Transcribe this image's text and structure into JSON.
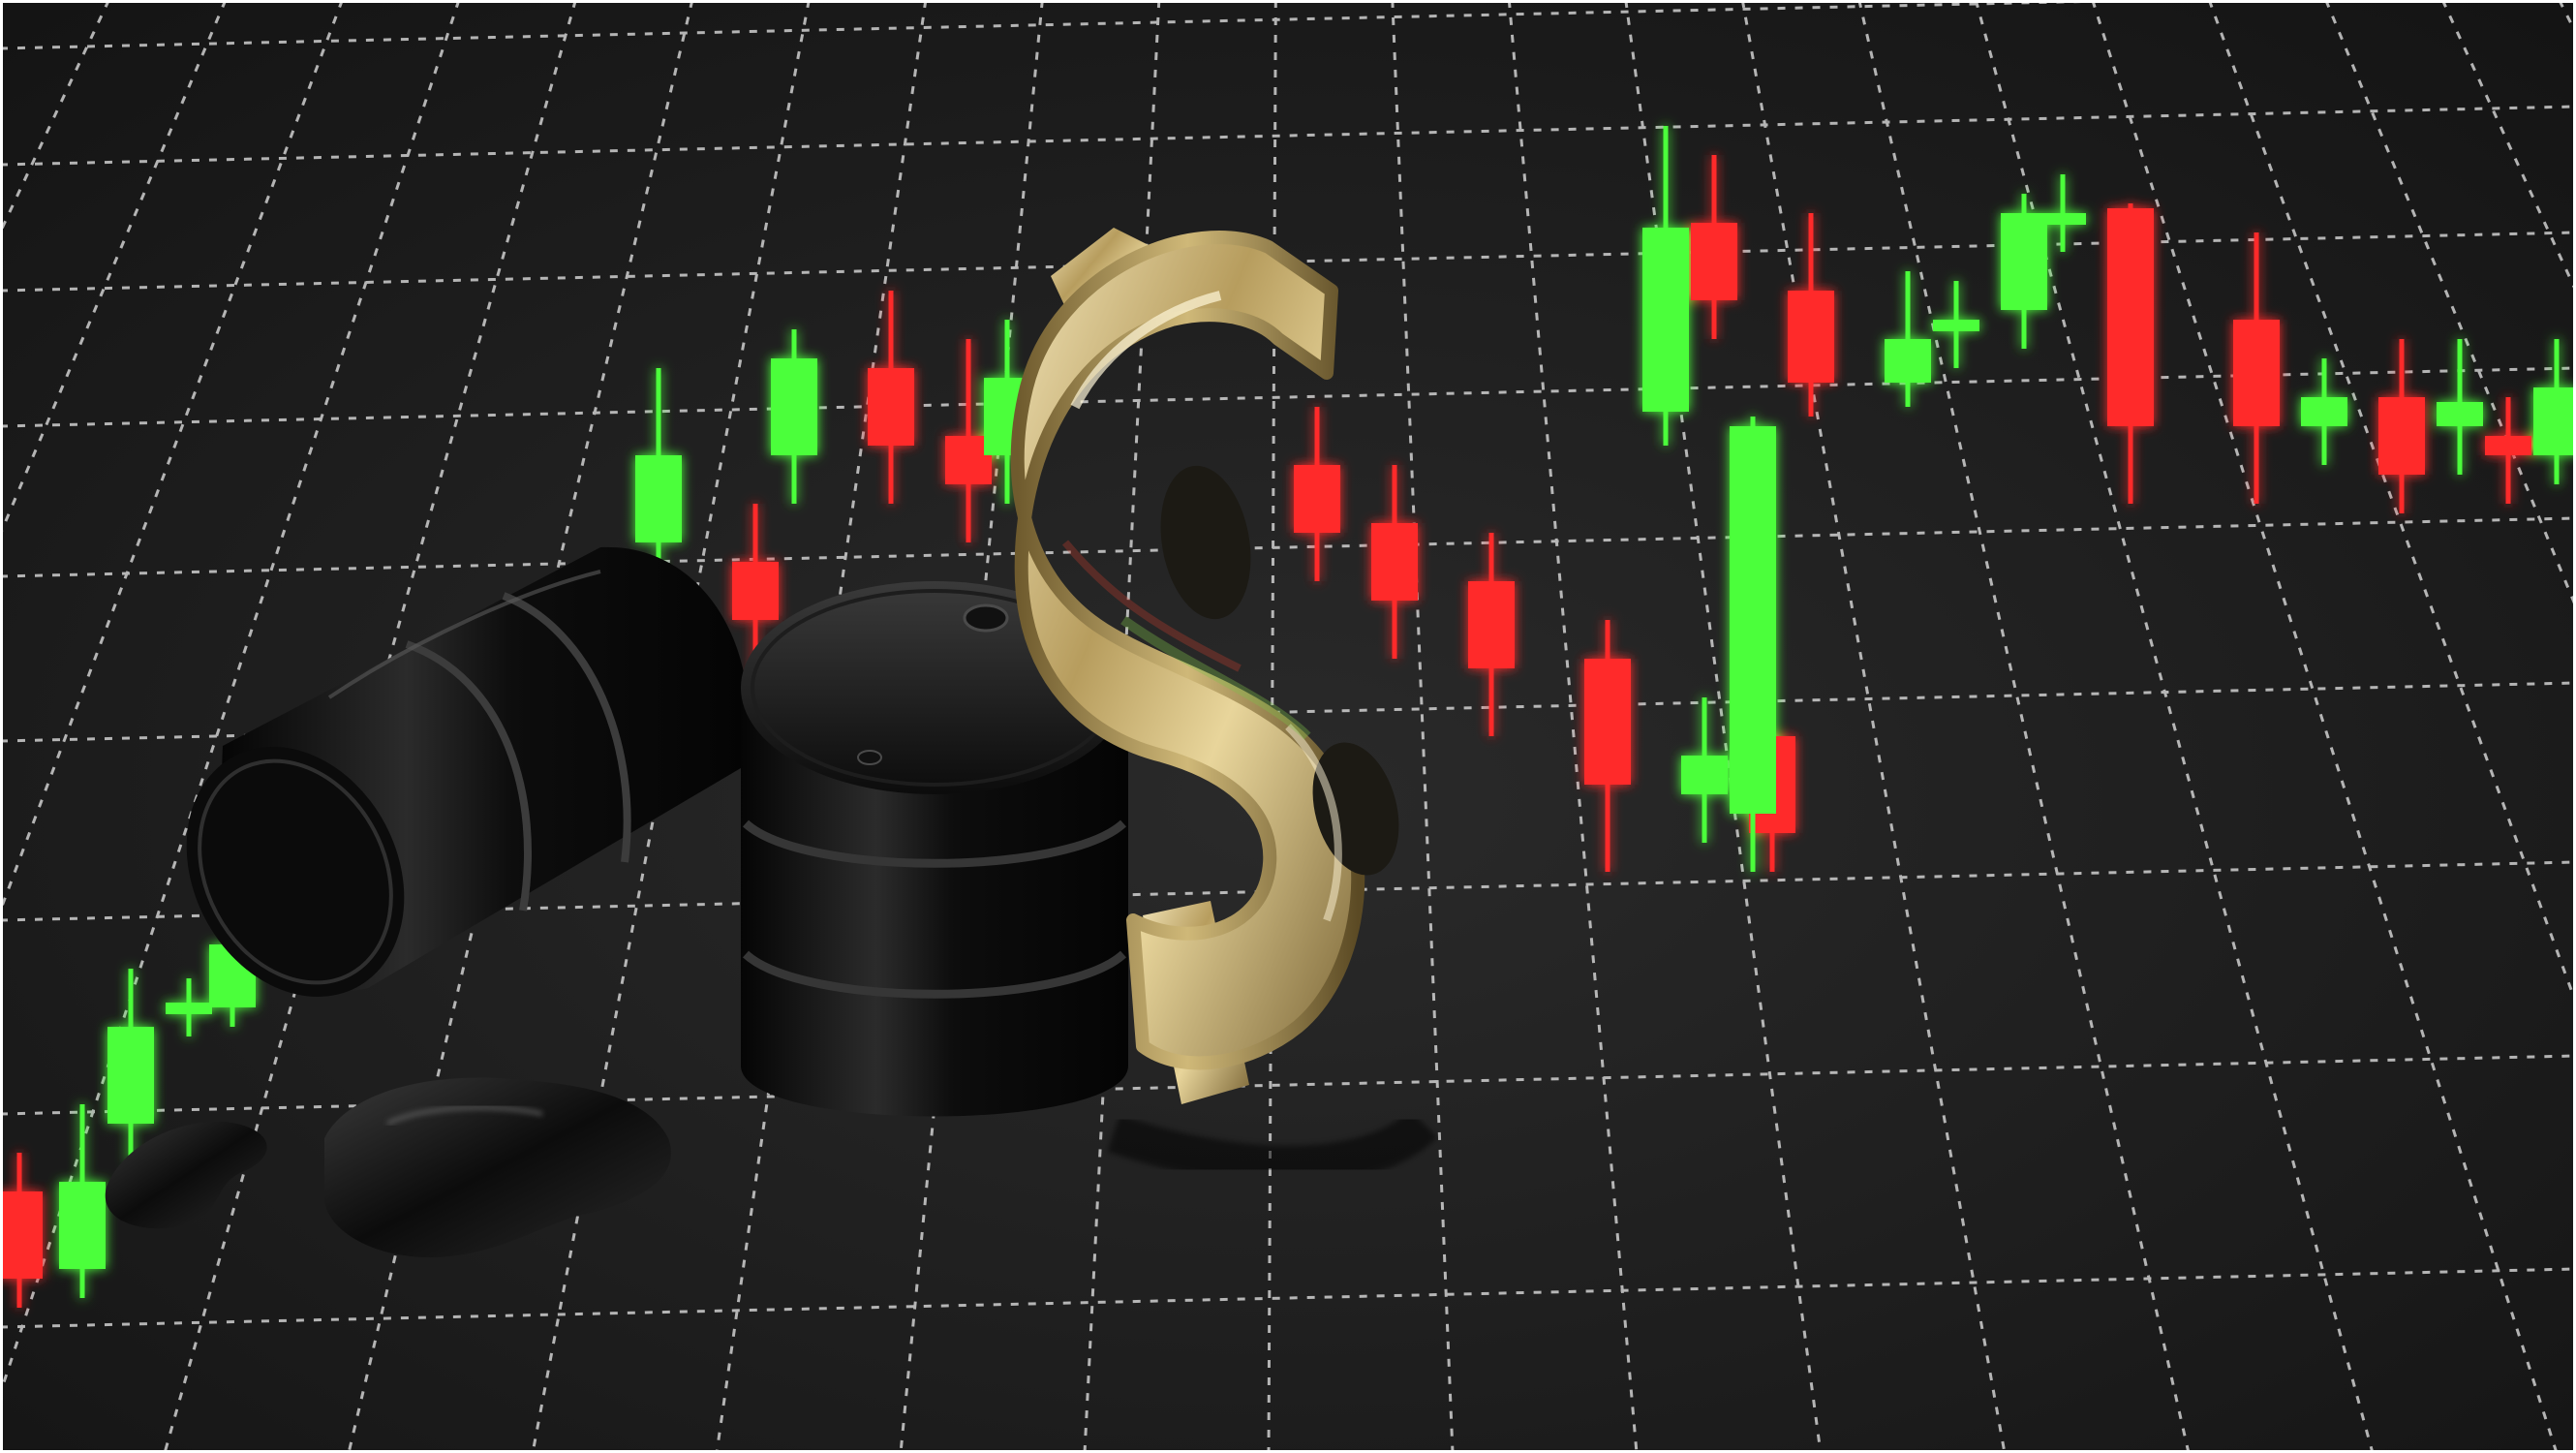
{
  "image": {
    "subject": "oil-barrels-dollar-sign-candlestick-chart",
    "text": []
  },
  "colors": {
    "background": "#1b1b1b",
    "grid": "#e8e8e8",
    "bullish": "#4cff3a",
    "bearish": "#ff2b2b",
    "barrel": "#0a0a0a",
    "gold": "#c8b27a",
    "frame": "#ffffff"
  },
  "candles": {
    "upper": [
      {
        "dir": "up"
      },
      {
        "dir": "down"
      },
      {
        "dir": "down"
      },
      {
        "dir": "up"
      },
      {
        "dir": "down"
      },
      {
        "dir": "down"
      },
      {
        "dir": "down"
      },
      {
        "dir": "down"
      },
      {
        "dir": "up"
      },
      {
        "dir": "down"
      },
      {
        "dir": "up"
      },
      {
        "dir": "down"
      }
    ],
    "right": [
      {
        "dir": "up"
      },
      {
        "dir": "down"
      },
      {
        "dir": "down"
      },
      {
        "dir": "up"
      },
      {
        "dir": "up"
      },
      {
        "dir": "up"
      },
      {
        "dir": "up"
      },
      {
        "dir": "down"
      },
      {
        "dir": "down"
      },
      {
        "dir": "up"
      },
      {
        "dir": "down"
      },
      {
        "dir": "up"
      },
      {
        "dir": "down"
      },
      {
        "dir": "up"
      }
    ],
    "lower_left": [
      {
        "dir": "down"
      },
      {
        "dir": "up"
      },
      {
        "dir": "up"
      },
      {
        "dir": "up"
      },
      {
        "dir": "up"
      }
    ]
  }
}
